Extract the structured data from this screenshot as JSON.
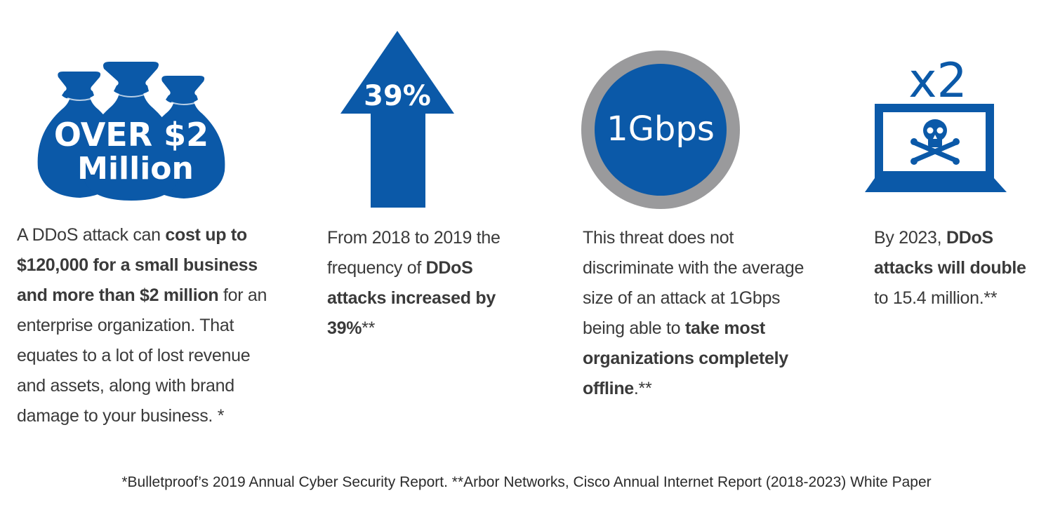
{
  "stats": [
    {
      "icon": "money-bags-icon",
      "icon_text_line1": "OVER $2",
      "icon_text_line2": "Million",
      "desc": {
        "p1": "A DDoS attack can ",
        "b1": "cost up to $120,000 for a small business and more than $2 million",
        "p2": " for an enterprise organization. That equates to a lot of lost revenue and assets, along with brand damage to your business. *"
      }
    },
    {
      "icon": "up-arrow-icon",
      "icon_text": "39%",
      "desc": {
        "p1": "From 2018 to 2019 the frequency of ",
        "b1": "DDoS attacks increased by 39%",
        "p2": "**"
      }
    },
    {
      "icon": "circle-badge-icon",
      "icon_text": "1Gbps",
      "desc": {
        "p1": "This threat does not discriminate with the average size of an attack at 1Gbps being able to ",
        "b1": "take most organizations completely offline",
        "p2": ".**"
      }
    },
    {
      "icon": "laptop-skull-icon",
      "icon_text": "x2",
      "desc": {
        "p1": "By 2023, ",
        "b1": "DDoS attacks will double",
        "p2": " to 15.4 million.**"
      }
    }
  ],
  "footnote": "*Bulletproof’s 2019 Annual Cyber Security Report. **Arbor Networks, Cisco Annual Internet Report (2018-2023) White Paper",
  "colors": {
    "brand_blue": "#0b59a8",
    "ring_gray": "#9a9a9c",
    "text": "#3a3a3a"
  }
}
